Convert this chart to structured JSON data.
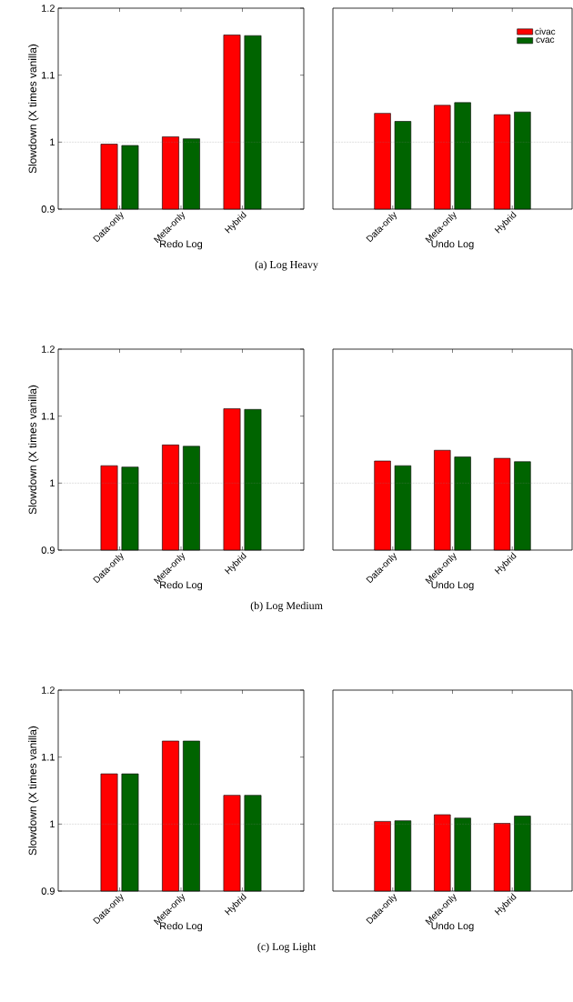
{
  "chart_data": [
    {
      "type": "bar",
      "ylabel": "Slowdown (X times vanilla)",
      "xlabel": "Redo Log",
      "categories": [
        "Data-only",
        "Meta-only",
        "Hybrid"
      ],
      "series": [
        {
          "color": "#ff0000",
          "values": [
            0.997,
            1.008,
            1.16
          ]
        },
        {
          "color": "#006400",
          "values": [
            0.995,
            1.005,
            1.159
          ]
        }
      ],
      "ylim": [
        0.9,
        1.2
      ],
      "yticks": [
        0.9,
        1,
        1.1,
        1.2
      ],
      "ref_lines": [
        {
          "axis": "y",
          "value": 1,
          "color": "#808080",
          "line_style": "dotted"
        }
      ],
      "annotations": [
        "(a)  Log Heavy"
      ]
    },
    {
      "type": "bar",
      "xlabel": "Undo Log",
      "categories": [
        "Data-only",
        "Meta-only",
        "Hybrid"
      ],
      "series": [
        {
          "name": "civac",
          "color": "#ff0000",
          "values": [
            1.043,
            1.055,
            1.041
          ]
        },
        {
          "name": "cvac",
          "color": "#006400",
          "values": [
            1.031,
            1.059,
            1.045
          ]
        }
      ],
      "ylim": [
        0.9,
        1.2
      ],
      "tick_labels": "x",
      "legend": "top right",
      "ref_lines": [
        {
          "axis": "y",
          "value": 1,
          "color": "#808080",
          "line_style": "dotted"
        }
      ]
    },
    {
      "type": "bar",
      "ylabel": "Slowdown (X times vanilla)",
      "xlabel": "Redo Log",
      "categories": [
        "Data-only",
        "Meta-only",
        "Hybrid"
      ],
      "series": [
        {
          "color": "#ff0000",
          "values": [
            1.026,
            1.057,
            1.111
          ]
        },
        {
          "color": "#006400",
          "values": [
            1.024,
            1.055,
            1.11
          ]
        }
      ],
      "ylim": [
        0.9,
        1.2
      ],
      "yticks": [
        0.9,
        1,
        1.1,
        1.2
      ],
      "ref_lines": [
        {
          "axis": "y",
          "value": 1,
          "color": "#808080",
          "line_style": "dotted"
        }
      ],
      "annotations": [
        "(b)  Log Medium"
      ]
    },
    {
      "type": "bar",
      "xlabel": "Undo Log",
      "categories": [
        "Data-only",
        "Meta-only",
        "Hybrid"
      ],
      "series": [
        {
          "color": "#ff0000",
          "values": [
            1.033,
            1.049,
            1.037
          ]
        },
        {
          "color": "#006400",
          "values": [
            1.026,
            1.039,
            1.032
          ]
        }
      ],
      "ylim": [
        0.9,
        1.2
      ],
      "tick_labels": "x",
      "ref_lines": [
        {
          "axis": "y",
          "value": 1,
          "color": "#808080",
          "line_style": "dotted"
        }
      ]
    },
    {
      "type": "bar",
      "ylabel": "Slowdown (X times vanilla)",
      "xlabel": "Redo Log",
      "categories": [
        "Data-only",
        "Meta-only",
        "Hybrid"
      ],
      "series": [
        {
          "color": "#ff0000",
          "values": [
            1.075,
            1.124,
            1.043
          ]
        },
        {
          "color": "#006400",
          "values": [
            1.075,
            1.124,
            1.043
          ]
        }
      ],
      "ylim": [
        0.9,
        1.2
      ],
      "yticks": [
        0.9,
        1,
        1.1,
        1.2
      ],
      "ref_lines": [
        {
          "axis": "y",
          "value": 1,
          "color": "#808080",
          "line_style": "dotted"
        }
      ],
      "annotations": [
        "(c)  Log Light"
      ]
    },
    {
      "type": "bar",
      "xlabel": "Undo Log",
      "categories": [
        "Data-only",
        "Meta-only",
        "Hybrid"
      ],
      "series": [
        {
          "color": "#ff0000",
          "values": [
            1.004,
            1.014,
            1.001
          ]
        },
        {
          "color": "#006400",
          "values": [
            1.005,
            1.009,
            1.012
          ]
        }
      ],
      "ylim": [
        0.9,
        1.2
      ],
      "tick_labels": "x",
      "ref_lines": [
        {
          "axis": "y",
          "value": 1,
          "color": "#808080",
          "line_style": "dotted"
        }
      ]
    }
  ]
}
